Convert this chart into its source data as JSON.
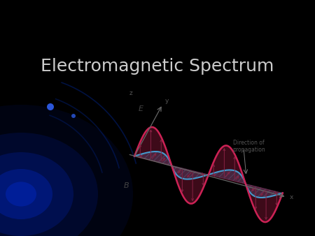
{
  "title": "Electromagnetic Spectrum",
  "title_fontsize": 18,
  "title_color": "#cccccc",
  "background_color": "#000000",
  "diagram_bg": "#f8f4ee",
  "wave_color_E": "#cc2255",
  "wave_color_B": "#4499cc",
  "arrow_color": "#882244",
  "label_E": "E",
  "label_B": "B",
  "label_y": "y",
  "label_x": "x",
  "label_z": "z",
  "label_dir": "Direction of\npropagation",
  "wave_amplitude": 1.0,
  "glow_color": "#0022aa",
  "dot_color": "#3366ff",
  "line_color": "#0033bb"
}
